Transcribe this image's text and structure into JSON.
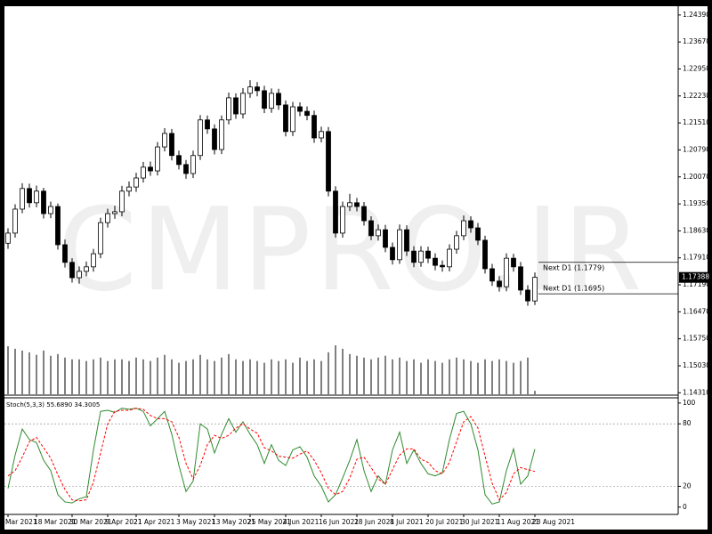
{
  "chart_data": [
    {
      "type": "candlestick",
      "watermark": "CMPRO.IR",
      "up_color": "#ffffff",
      "down_color": "#000000",
      "categories": [
        "Mar 2021",
        null,
        null,
        null,
        "18 Mar 2021",
        null,
        null,
        null,
        null,
        "30 Mar 2021",
        null,
        null,
        null,
        null,
        "9 Apr 2021",
        null,
        null,
        null,
        "21 Apr 2021",
        null,
        null,
        null,
        null,
        null,
        "3 May 2021",
        null,
        null,
        null,
        null,
        "13 May 2021",
        null,
        null,
        null,
        null,
        "25 May 2021",
        null,
        null,
        null,
        null,
        "4 Jun 2021",
        null,
        null,
        null,
        null,
        "16 Jun 2021",
        null,
        null,
        null,
        null,
        "28 Jun 2021",
        null,
        null,
        null,
        null,
        "8 Jul 2021",
        null,
        null,
        null,
        null,
        "20 Jul 2021",
        null,
        null,
        null,
        null,
        "30 Jul 2021",
        null,
        null,
        null,
        null,
        "11 Aug 2021",
        null,
        null,
        null,
        null,
        "23 Aug 2021"
      ],
      "open": [
        1.183,
        1.1857,
        1.1921,
        1.1976,
        1.1938,
        1.1969,
        1.1909,
        1.1928,
        1.1826,
        1.1779,
        1.1738,
        1.1755,
        1.1767,
        1.1802,
        1.1885,
        1.1909,
        1.1914,
        1.1969,
        1.198,
        1.2004,
        1.2033,
        1.2023,
        1.2087,
        1.2123,
        1.2064,
        1.204,
        1.2016,
        1.2064,
        1.2159,
        1.2135,
        1.208,
        1.2159,
        1.2218,
        1.2175,
        1.223,
        1.2247,
        1.2237,
        1.219,
        1.223,
        1.2199,
        1.2128,
        1.2194,
        1.2182,
        1.2171,
        1.2111,
        1.2128,
        1.1969,
        1.1857,
        1.1928,
        1.1938,
        1.1928,
        1.189,
        1.185,
        1.1866,
        1.1819,
        1.1786,
        1.1866,
        1.1809,
        1.1779,
        1.1809,
        1.179,
        1.1771,
        1.1767,
        1.1814,
        1.185,
        1.189,
        1.1871,
        1.1838,
        1.1762,
        1.1729,
        1.1714,
        1.179,
        1.1767,
        1.1705,
        1.1676
      ],
      "high": [
        1.187,
        1.1934,
        1.199,
        1.1989,
        1.1984,
        1.1978,
        1.1941,
        1.1936,
        1.184,
        1.179,
        1.1768,
        1.1781,
        1.1815,
        1.1898,
        1.1922,
        1.193,
        1.1983,
        1.1995,
        1.2018,
        1.2047,
        1.2048,
        1.21,
        1.2137,
        1.2135,
        1.2077,
        1.2052,
        1.2077,
        1.2172,
        1.2171,
        1.2147,
        1.2171,
        1.2232,
        1.223,
        1.2244,
        1.2265,
        1.226,
        1.225,
        1.2243,
        1.2242,
        1.2211,
        1.2207,
        1.2206,
        1.2195,
        1.2184,
        1.2141,
        1.214,
        1.1982,
        1.1941,
        1.1962,
        1.1951,
        1.194,
        1.1902,
        1.188,
        1.1879,
        1.1832,
        1.188,
        1.1878,
        1.1822,
        1.1822,
        1.1821,
        1.1803,
        1.1784,
        1.1827,
        1.1863,
        1.1904,
        1.1902,
        1.1884,
        1.185,
        1.1775,
        1.1742,
        1.1803,
        1.1802,
        1.178,
        1.1718,
        1.1752
      ],
      "low": [
        1.1815,
        1.1845,
        1.191,
        1.1925,
        1.1926,
        1.1896,
        1.1897,
        1.1813,
        1.1765,
        1.1725,
        1.1722,
        1.1742,
        1.1754,
        1.179,
        1.1872,
        1.1895,
        1.1902,
        1.1955,
        1.1967,
        1.1992,
        1.201,
        1.2011,
        1.2075,
        1.2051,
        1.2027,
        1.2002,
        1.2004,
        1.2052,
        1.2122,
        1.2067,
        1.2068,
        1.2147,
        1.2162,
        1.2163,
        1.2218,
        1.2222,
        1.2177,
        1.2178,
        1.2186,
        1.2115,
        1.2116,
        1.2169,
        1.2158,
        1.2098,
        1.2099,
        1.1955,
        1.1845,
        1.1845,
        1.1916,
        1.1915,
        1.1877,
        1.1838,
        1.1837,
        1.1806,
        1.1773,
        1.1775,
        1.1796,
        1.1766,
        1.1767,
        1.1777,
        1.1758,
        1.1754,
        1.1755,
        1.1802,
        1.1838,
        1.1858,
        1.1825,
        1.1749,
        1.1716,
        1.1701,
        1.1702,
        1.1754,
        1.1692,
        1.1663,
        1.1665
      ],
      "close": [
        1.1857,
        1.1921,
        1.1976,
        1.1938,
        1.1969,
        1.1909,
        1.1928,
        1.1826,
        1.1779,
        1.1738,
        1.1755,
        1.1767,
        1.1802,
        1.1885,
        1.1909,
        1.1914,
        1.1969,
        1.198,
        1.2004,
        1.2033,
        1.2023,
        1.2087,
        1.2123,
        1.2064,
        1.204,
        1.2016,
        1.2064,
        1.2159,
        1.2135,
        1.208,
        1.2159,
        1.2218,
        1.2175,
        1.223,
        1.2247,
        1.2237,
        1.219,
        1.223,
        1.2199,
        1.2128,
        1.2194,
        1.2182,
        1.2171,
        1.2111,
        1.2128,
        1.1969,
        1.1857,
        1.1928,
        1.1938,
        1.1928,
        1.189,
        1.185,
        1.1866,
        1.1819,
        1.1786,
        1.1866,
        1.1809,
        1.1779,
        1.1809,
        1.179,
        1.1771,
        1.1767,
        1.1814,
        1.185,
        1.189,
        1.1871,
        1.1838,
        1.1762,
        1.1729,
        1.1714,
        1.179,
        1.1767,
        1.1705,
        1.1676,
        1.1739
      ],
      "volume": [
        55,
        52,
        50,
        48,
        45,
        50,
        44,
        46,
        42,
        40,
        40,
        38,
        40,
        42,
        38,
        40,
        40,
        38,
        42,
        40,
        38,
        42,
        45,
        40,
        36,
        38,
        40,
        45,
        40,
        38,
        42,
        46,
        40,
        38,
        40,
        38,
        36,
        40,
        38,
        40,
        36,
        42,
        38,
        40,
        38,
        48,
        56,
        52,
        46,
        44,
        42,
        40,
        42,
        44,
        40,
        42,
        38,
        40,
        36,
        40,
        38,
        36,
        40,
        42,
        40,
        38,
        36,
        40,
        38,
        40,
        38,
        36,
        38,
        42,
        4
      ],
      "ylim": [
        1.1427,
        1.246
      ],
      "yticks": [
        {
          "value": 1.2439,
          "label": "1.24390"
        },
        {
          "value": 1.2367,
          "label": "1.23670"
        },
        {
          "value": 1.2295,
          "label": "1.22950"
        },
        {
          "value": 1.2223,
          "label": "1.22230"
        },
        {
          "value": 1.2151,
          "label": "1.21510"
        },
        {
          "value": 1.2079,
          "label": "1.20790"
        },
        {
          "value": 1.2007,
          "label": "1.20070"
        },
        {
          "value": 1.1935,
          "label": "1.19350"
        },
        {
          "value": 1.1863,
          "label": "1.18630"
        },
        {
          "value": 1.1791,
          "label": "1.17910"
        },
        {
          "value": 1.1719,
          "label": "1.17190"
        },
        {
          "value": 1.1647,
          "label": "1.16470"
        },
        {
          "value": 1.1575,
          "label": "1.15750"
        },
        {
          "value": 1.1503,
          "label": "1.15030"
        },
        {
          "value": 1.1431,
          "label": "1.14310"
        }
      ],
      "last_price": 1.17388,
      "price_levels": [
        {
          "value": 1.1779,
          "label": "Next D1 (1.1779)"
        },
        {
          "value": 1.1695,
          "label": "Next D1 (1.1695)"
        }
      ]
    },
    {
      "type": "line",
      "title": "Stoch(5,3,3) 55.6890 34.3005",
      "ylim": [
        -7,
        105
      ],
      "yticks": [
        0,
        20,
        80,
        100
      ],
      "level_lines": [
        20,
        80
      ],
      "series": [
        {
          "color": "#2e8b2e",
          "dashed": false,
          "values": [
            18,
            50,
            75,
            65,
            62,
            45,
            35,
            12,
            5,
            4,
            8,
            10,
            55,
            92,
            93,
            91,
            95,
            94,
            95,
            92,
            78,
            85,
            92,
            70,
            40,
            15,
            25,
            80,
            75,
            52,
            70,
            85,
            72,
            82,
            70,
            60,
            42,
            60,
            45,
            40,
            55,
            58,
            48,
            30,
            20,
            5,
            12,
            28,
            45,
            65,
            35,
            15,
            30,
            22,
            55,
            72,
            42,
            55,
            42,
            32,
            30,
            33,
            65,
            90,
            92,
            80,
            55,
            12,
            3,
            5,
            35,
            56,
            22,
            30,
            55.689
          ]
        },
        {
          "color": "#ff0000",
          "dashed": true,
          "values": [
            30,
            35,
            48,
            63,
            67,
            57,
            47,
            31,
            17,
            7,
            6,
            7,
            24,
            52,
            80,
            92,
            93,
            93,
            95,
            94,
            88,
            85,
            85,
            82,
            67,
            42,
            27,
            40,
            60,
            69,
            66,
            69,
            76,
            80,
            75,
            71,
            57,
            54,
            49,
            48,
            47,
            51,
            54,
            45,
            33,
            18,
            12,
            15,
            28,
            46,
            48,
            38,
            27,
            22,
            36,
            50,
            56,
            56,
            46,
            43,
            35,
            32,
            43,
            63,
            82,
            87,
            76,
            49,
            23,
            7,
            14,
            32,
            38,
            36,
            34.3005
          ]
        }
      ]
    }
  ]
}
